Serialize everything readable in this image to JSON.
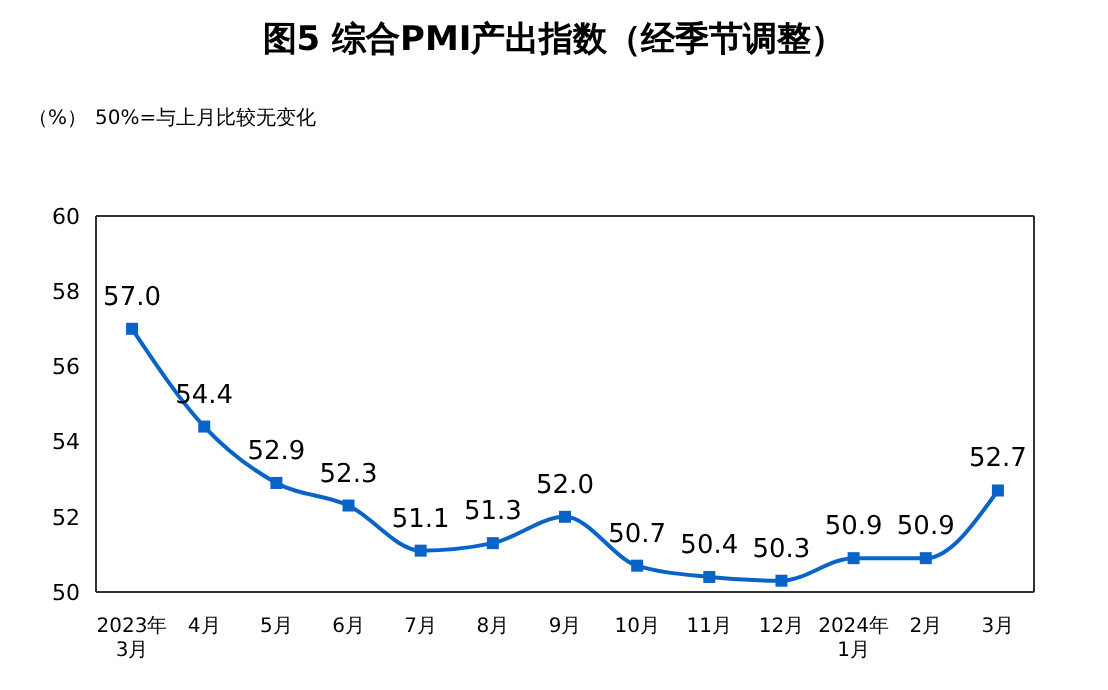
{
  "chart_data": {
    "type": "line",
    "title": "图5  综合PMI产出指数（经季节调整）",
    "ylabel": "（%）",
    "annotations": [
      "50%=与上月比较无变化"
    ],
    "categories": [
      "2023年\n3月",
      "4月",
      "5月",
      "6月",
      "7月",
      "8月",
      "9月",
      "10月",
      "11月",
      "12月",
      "2024年\n1月",
      "2月",
      "3月"
    ],
    "series": [
      {
        "color": "#0a64c8",
        "values": [
          57.0,
          54.4,
          52.9,
          52.3,
          51.1,
          51.3,
          52.0,
          50.7,
          50.4,
          50.3,
          50.9,
          50.9,
          52.7
        ],
        "value_labels": [
          "57.0",
          "54.4",
          "52.9",
          "52.3",
          "51.1",
          "51.3",
          "52.0",
          "50.7",
          "50.4",
          "50.3",
          "50.9",
          "50.9",
          "52.7"
        ]
      }
    ],
    "ylim": [
      50,
      60
    ],
    "yticks": [
      50,
      52,
      54,
      56,
      58,
      60
    ],
    "marker": "square",
    "line_style": "solid"
  }
}
